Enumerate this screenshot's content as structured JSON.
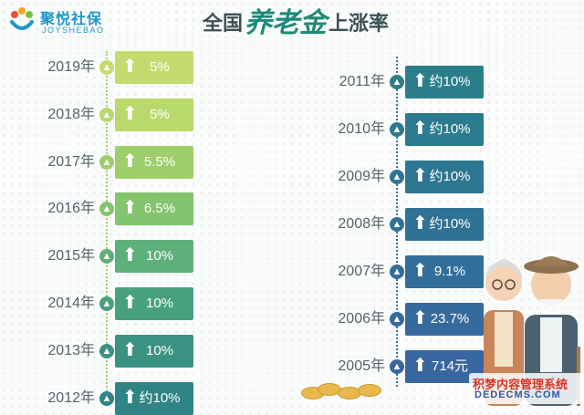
{
  "brand": {
    "name": "聚悦社保",
    "sub": "JOYSHEBAO"
  },
  "title": {
    "part1": "全国",
    "part2": "养老金",
    "part3": "上涨率"
  },
  "left": [
    {
      "year": "2019年",
      "value": "5%",
      "color": "#c6db6e"
    },
    {
      "year": "2018年",
      "value": "5%",
      "color": "#b9d96c"
    },
    {
      "year": "2017年",
      "value": "5.5%",
      "color": "#9fce6c"
    },
    {
      "year": "2016年",
      "value": "6.5%",
      "color": "#83c46e"
    },
    {
      "year": "2015年",
      "value": "10%",
      "color": "#5eb07a"
    },
    {
      "year": "2014年",
      "value": "10%",
      "color": "#48a17e"
    },
    {
      "year": "2013年",
      "value": "10%",
      "color": "#3a9282"
    },
    {
      "year": "2012年",
      "value": "约10%",
      "color": "#2f8486"
    }
  ],
  "right": [
    {
      "year": "2011年",
      "value": "约10%",
      "color": "#2b7f8a"
    },
    {
      "year": "2010年",
      "value": "约10%",
      "color": "#2c7b8f"
    },
    {
      "year": "2009年",
      "value": "约10%",
      "color": "#2d7692"
    },
    {
      "year": "2008年",
      "value": "约10%",
      "color": "#2f7296"
    },
    {
      "year": "2007年",
      "value": "9.1%",
      "color": "#326e9a"
    },
    {
      "year": "2006年",
      "value": "23.7%",
      "color": "#356a9d"
    },
    {
      "year": "2005年",
      "value": "714元",
      "color": "#3866a0"
    }
  ],
  "icons": {
    "arrow": "up-arrow-icon"
  },
  "watermark": {
    "line1": "积梦内容管理系统",
    "line2": "DEDECMS.COM"
  }
}
